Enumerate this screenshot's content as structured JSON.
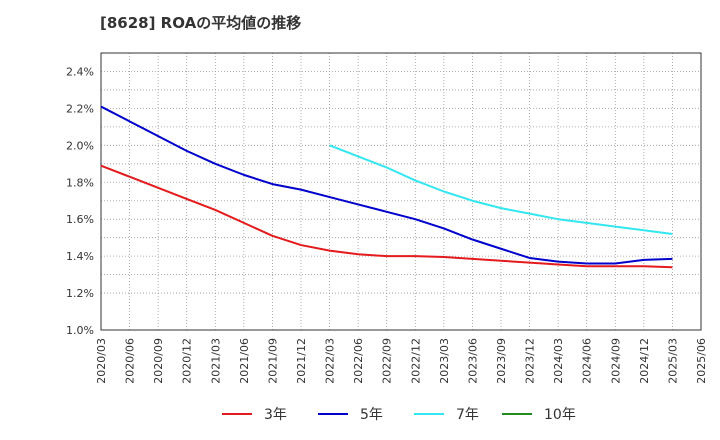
{
  "chart_data": {
    "type": "line",
    "title": "[8628]  ROAの平均値の推移",
    "xlabel": "",
    "ylabel": "",
    "x": [
      "2020/03",
      "2020/06",
      "2020/09",
      "2020/12",
      "2021/03",
      "2021/06",
      "2021/09",
      "2021/12",
      "2022/03",
      "2022/06",
      "2022/09",
      "2022/12",
      "2023/03",
      "2023/06",
      "2023/09",
      "2023/12",
      "2024/03",
      "2024/06",
      "2024/09",
      "2024/12",
      "2025/03",
      "2025/06"
    ],
    "y_ticks": [
      "1.0%",
      "1.2%",
      "1.4%",
      "1.6%",
      "1.8%",
      "2.0%",
      "2.2%",
      "2.4%"
    ],
    "ylim": [
      1.0,
      2.5
    ],
    "grid": true,
    "legend_position": "bottom",
    "series": [
      {
        "name": "3年",
        "color": "#e41a1c",
        "values": [
          1.89,
          1.83,
          1.77,
          1.71,
          1.65,
          1.58,
          1.51,
          1.46,
          1.43,
          1.41,
          1.4,
          1.4,
          1.395,
          1.385,
          1.375,
          1.365,
          1.355,
          1.345,
          1.345,
          1.345,
          1.34,
          null
        ]
      },
      {
        "name": "5年",
        "color": "#0000cc",
        "values": [
          2.21,
          2.13,
          2.05,
          1.97,
          1.9,
          1.84,
          1.79,
          1.76,
          1.72,
          1.68,
          1.64,
          1.6,
          1.55,
          1.49,
          1.44,
          1.39,
          1.37,
          1.36,
          1.36,
          1.38,
          1.385,
          null
        ]
      },
      {
        "name": "7年",
        "color": "#33e6f0",
        "values": [
          null,
          null,
          null,
          null,
          null,
          null,
          null,
          null,
          2.0,
          1.94,
          1.88,
          1.81,
          1.75,
          1.7,
          1.66,
          1.63,
          1.6,
          1.58,
          1.56,
          1.54,
          1.52,
          null
        ]
      },
      {
        "name": "10年",
        "color": "#228b22",
        "values": [
          null,
          null,
          null,
          null,
          null,
          null,
          null,
          null,
          null,
          null,
          null,
          null,
          null,
          null,
          null,
          null,
          null,
          null,
          null,
          null,
          null,
          null
        ]
      }
    ]
  }
}
